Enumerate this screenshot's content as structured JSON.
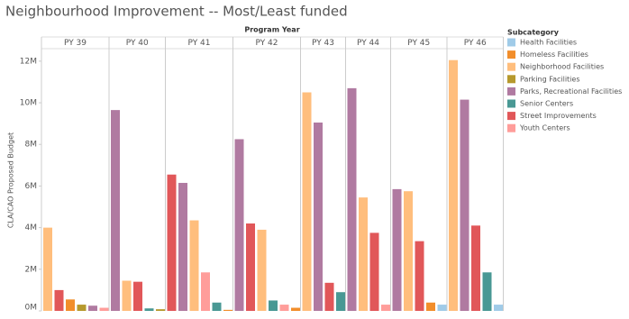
{
  "chart_data": {
    "type": "bar",
    "title": "Neighbourhood Improvement -- Most/Least funded",
    "y_label": "CLA/CAO Proposed Budget",
    "facet_label": "Program Year",
    "legend_title": "Subcategory",
    "categories": [
      "PY 39",
      "PY 40",
      "PY 41",
      "PY 42",
      "PY 43",
      "PY 44",
      "PY 45",
      "PY 46"
    ],
    "ylim": [
      0,
      12.6
    ],
    "yticks": [
      {
        "value": 0,
        "label": "0M"
      },
      {
        "value": 2,
        "label": "2M"
      },
      {
        "value": 4,
        "label": "4M"
      },
      {
        "value": 6,
        "label": "6M"
      },
      {
        "value": 8,
        "label": "8M"
      },
      {
        "value": 10,
        "label": "10M"
      },
      {
        "value": 12,
        "label": "12M"
      }
    ],
    "series": [
      {
        "name": "Health Facilities",
        "color": "#a0cbe8",
        "values": [
          null,
          null,
          null,
          null,
          null,
          null,
          0.3,
          0.3
        ]
      },
      {
        "name": "Homeless Facilities",
        "color": "#f28e2b",
        "values": [
          0.55,
          null,
          0.05,
          0.15,
          null,
          null,
          0.4,
          null
        ]
      },
      {
        "name": "Neighborhood Facilities",
        "color": "#ffbe7d",
        "values": [
          4.0,
          1.45,
          4.35,
          3.9,
          10.5,
          5.45,
          5.75,
          12.05
        ]
      },
      {
        "name": "Parking Facilities",
        "color": "#b6992d",
        "values": [
          0.3,
          0.08,
          null,
          null,
          null,
          null,
          null,
          null
        ]
      },
      {
        "name": "Parks, Recreational Facilities",
        "color": "#b07aa1",
        "values": [
          0.25,
          9.65,
          6.15,
          8.25,
          9.05,
          10.7,
          5.85,
          10.15
        ]
      },
      {
        "name": "Senior Centers",
        "color": "#499894",
        "values": [
          null,
          0.12,
          0.4,
          0.5,
          0.9,
          null,
          null,
          1.85
        ]
      },
      {
        "name": "Street Improvements",
        "color": "#e15759",
        "values": [
          1.0,
          1.4,
          6.55,
          4.2,
          1.35,
          3.75,
          3.35,
          4.1
        ]
      },
      {
        "name": "Youth Centers",
        "color": "#ff9d9a",
        "values": [
          0.15,
          null,
          1.85,
          0.3,
          null,
          0.3,
          null,
          null
        ]
      }
    ]
  }
}
